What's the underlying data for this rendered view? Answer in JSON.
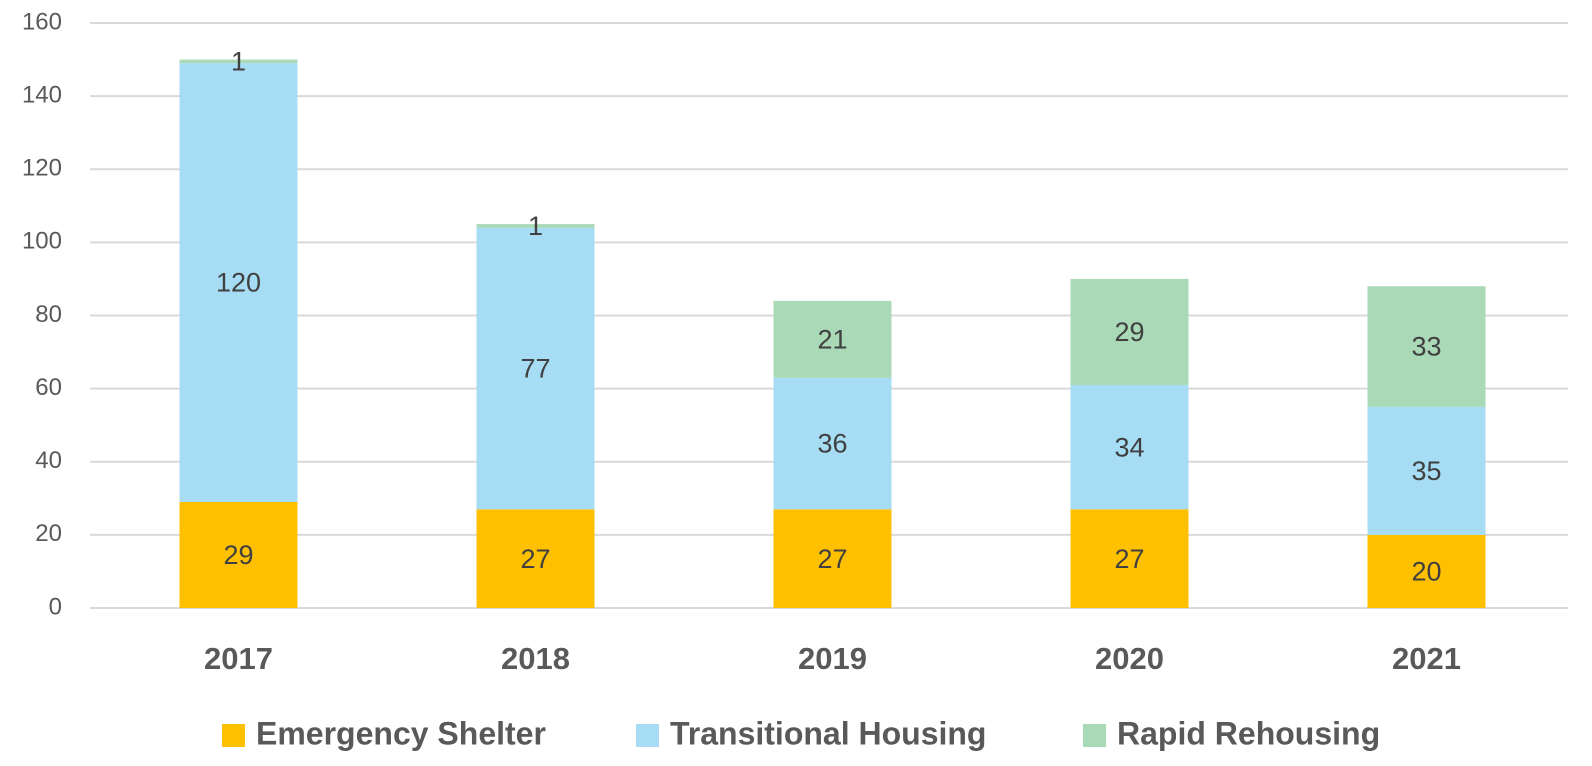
{
  "chart_data": {
    "type": "stacked_bar",
    "categories": [
      "2017",
      "2018",
      "2019",
      "2020",
      "2021"
    ],
    "series": [
      {
        "name": "Emergency Shelter",
        "color": "#ffc000",
        "values": [
          29,
          27,
          27,
          27,
          20
        ]
      },
      {
        "name": "Transitional Housing",
        "color": "#a6ddf4",
        "values": [
          120,
          77,
          36,
          34,
          35
        ]
      },
      {
        "name": "Rapid Rehousing",
        "color": "#a9d9b6",
        "values": [
          1,
          1,
          21,
          29,
          33
        ]
      }
    ],
    "ylim": [
      0,
      160
    ],
    "yticks": [
      0,
      20,
      40,
      60,
      80,
      100,
      120,
      140,
      160
    ],
    "grid": true,
    "legend": "bottom"
  }
}
